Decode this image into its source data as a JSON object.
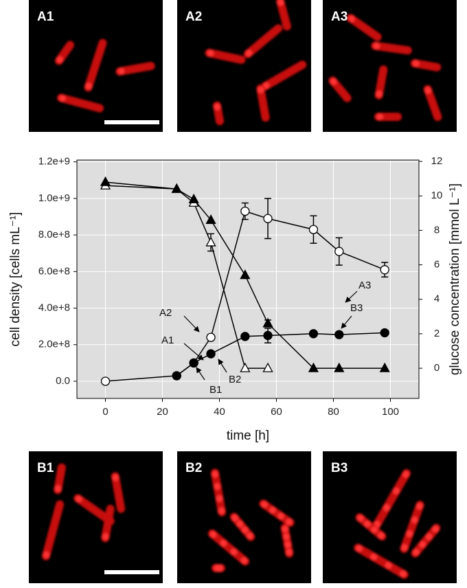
{
  "panels_top": [
    "A1",
    "A2",
    "A3"
  ],
  "panels_bottom": [
    "B1",
    "B2",
    "B3"
  ],
  "chart_data": {
    "type": "line",
    "x_label": "time [h]",
    "y_label": "cell density [cells mL⁻¹]",
    "y2_label": "glucose concentration [mmol L⁻¹]",
    "xlim": [
      -10,
      110
    ],
    "xticks": [
      0,
      20,
      40,
      60,
      80,
      100
    ],
    "ylim": [
      -94000000,
      1210000000
    ],
    "yticks": [
      {
        "value": 0,
        "label": "0.0"
      },
      {
        "value": 200000000,
        "label": "2.0e+8"
      },
      {
        "value": 400000000,
        "label": "4.0e+8"
      },
      {
        "value": 600000000,
        "label": "6.0e+8"
      },
      {
        "value": 800000000,
        "label": "8.0e+8"
      },
      {
        "value": 1000000000,
        "label": "1.0e+9"
      },
      {
        "value": 1200000000,
        "label": "1.2e+9"
      }
    ],
    "y2lim": [
      -1.75,
      12.08
    ],
    "y2ticks": [
      0,
      2,
      4,
      6,
      8,
      10,
      12
    ],
    "grid": true,
    "background": "#dedede",
    "series": [
      {
        "axis": "y",
        "marker": "circle",
        "fill": "open",
        "color": "#000000",
        "x": [
          0,
          25,
          31,
          37,
          49,
          57,
          73,
          82,
          98
        ],
        "values": [
          0,
          30000000,
          100000000,
          240000000,
          930000000,
          890000000,
          830000000,
          710000000,
          610000000
        ],
        "errors": [
          null,
          null,
          null,
          15000000,
          45000000,
          110000000,
          75000000,
          75000000,
          40000000
        ]
      },
      {
        "axis": "y",
        "marker": "circle",
        "fill": "filled",
        "color": "#000000",
        "x": [
          25,
          31,
          37,
          49,
          57,
          73,
          82,
          98
        ],
        "values": [
          30000000,
          100000000,
          150000000,
          245000000,
          250000000,
          260000000,
          255000000,
          265000000
        ],
        "errors": [
          null,
          null,
          null,
          null,
          40000000,
          null,
          null,
          null
        ]
      },
      {
        "axis": "y2",
        "marker": "triangle",
        "fill": "open",
        "color": "#000000",
        "x": [
          0,
          25,
          31,
          37,
          49,
          57
        ],
        "values": [
          10.6,
          10.4,
          9.6,
          7.3,
          0,
          0
        ],
        "errors": [
          null,
          null,
          null,
          0.5,
          null,
          null
        ]
      },
      {
        "axis": "y2",
        "marker": "triangle",
        "fill": "filled",
        "color": "#000000",
        "x": [
          0,
          25,
          31,
          37,
          49,
          57,
          73,
          82,
          98
        ],
        "values": [
          10.8,
          10.4,
          9.8,
          8.6,
          5.4,
          2.6,
          0,
          0,
          0
        ],
        "errors": [
          null,
          null,
          null,
          null,
          null,
          0.2,
          null,
          null,
          null
        ]
      }
    ],
    "annotations": [
      "A1",
      "A2",
      "A3",
      "B1",
      "B2",
      "B3"
    ]
  }
}
